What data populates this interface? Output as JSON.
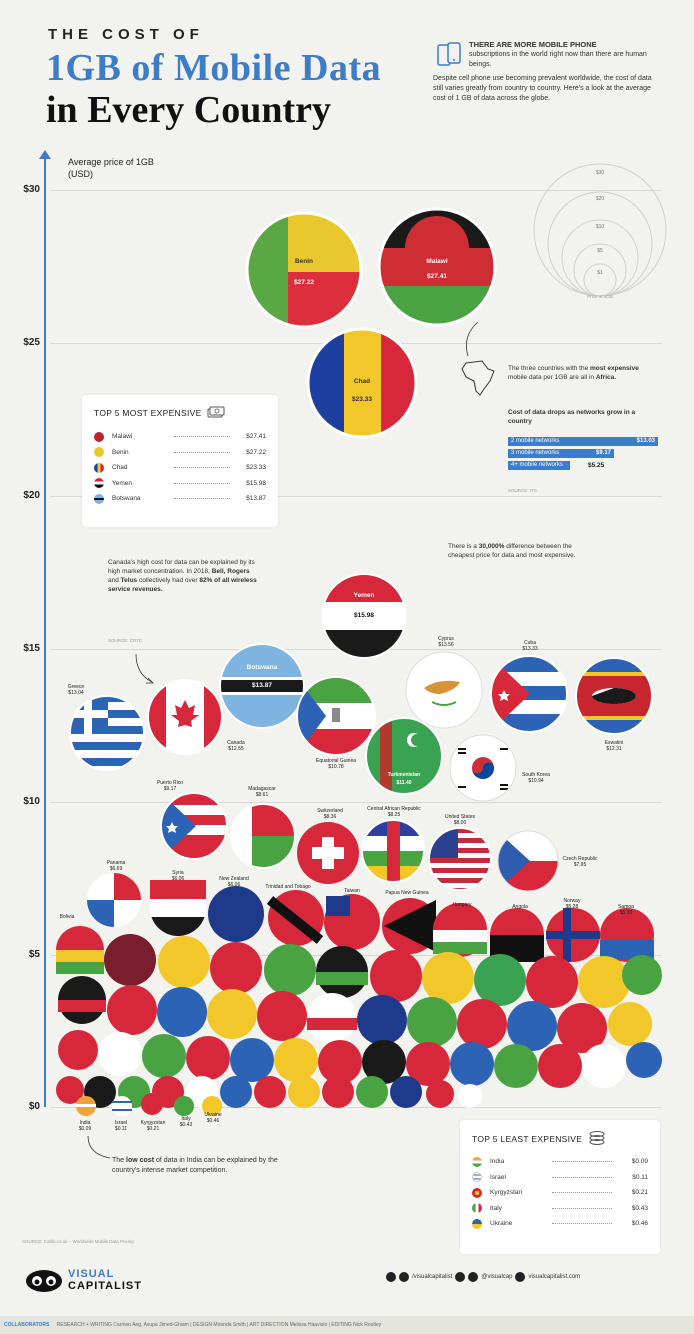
{
  "header": {
    "title_small": "THE COST OF",
    "title_line1": "1GB of Mobile Data",
    "title_line2": "in Every Country",
    "intro_headline": "THERE ARE MORE MOBILE PHONE",
    "intro_p1": "subscriptions in the world right now than there are human beings.",
    "intro_p2": "Despite cell phone use becoming prevalent worldwide, the cost of data still varies greatly from country to country. Here's a look at the average cost of 1 GB of data across the globe."
  },
  "axis": {
    "label": "Average price of 1GB (USD)",
    "ticks": [
      "$30",
      "$25",
      "$20",
      "$15",
      "$10",
      "$5",
      "$0"
    ]
  },
  "chart_data": {
    "type": "scatter",
    "ylabel": "Average price of 1GB (USD)",
    "ylim": [
      0,
      30
    ],
    "points": [
      {
        "name": "Malawi",
        "value": 27.41
      },
      {
        "name": "Benin",
        "value": 27.22
      },
      {
        "name": "Chad",
        "value": 23.33
      },
      {
        "name": "Yemen",
        "value": 15.98
      },
      {
        "name": "Botswana",
        "value": 13.87
      },
      {
        "name": "Cyprus",
        "value": 13.56
      },
      {
        "name": "Cuba",
        "value": 13.33
      },
      {
        "name": "Greece",
        "value": 13.04
      },
      {
        "name": "Canada",
        "value": 12.55
      },
      {
        "name": "Eswatini",
        "value": 12.31
      },
      {
        "name": "Equatorial Guinea",
        "value": 10.78
      },
      {
        "name": "Turkmenistan",
        "value": 11.4
      },
      {
        "name": "South Korea",
        "value": 10.94
      },
      {
        "name": "Puerto Rico",
        "value": 9.17
      },
      {
        "name": "Madagascar",
        "value": 8.61
      },
      {
        "name": "Switzerland",
        "value": 8.36
      },
      {
        "name": "Central African Republic",
        "value": 8.25
      },
      {
        "name": "United States",
        "value": 8.0
      },
      {
        "name": "Czech Republic",
        "value": 7.95
      }
    ]
  },
  "bubbles": {
    "benin": {
      "name": "Benin",
      "price": "$27.22"
    },
    "malawi": {
      "name": "Malawi",
      "price": "$27.41"
    },
    "chad": {
      "name": "Chad",
      "price": "$23.33"
    },
    "yemen": {
      "name": "Yemen",
      "price": "$15.98"
    },
    "botswana": {
      "name": "Botswana",
      "price": "$13.87"
    },
    "turkmenistan": {
      "name": "Turkmenistan",
      "price": "$11.40"
    }
  },
  "small_labels": [
    {
      "name": "Greece",
      "price": "$13.04"
    },
    {
      "name": "Canada",
      "price": "$12.55"
    },
    {
      "name": "Equatorial Guinea",
      "price": "$10.78"
    },
    {
      "name": "Cyprus",
      "price": "$13.56"
    },
    {
      "name": "Cuba",
      "price": "$13.33"
    },
    {
      "name": "Eswatini",
      "price": "$12.31"
    },
    {
      "name": "South Korea",
      "price": "$10.94"
    },
    {
      "name": "Puerto Rico",
      "price": "$9.17"
    },
    {
      "name": "Madagascar",
      "price": "$8.61"
    },
    {
      "name": "Switzerland",
      "price": "$8.36"
    },
    {
      "name": "Central African Republic",
      "price": "$8.25"
    },
    {
      "name": "United States",
      "price": "$8.00"
    },
    {
      "name": "Czech Republic",
      "price": "$7.95"
    },
    {
      "name": "Panama",
      "price": "$6.69"
    },
    {
      "name": "Syria",
      "price": "$6.06"
    },
    {
      "name": "New Zealand",
      "price": "$6.06"
    },
    {
      "name": "Trinidad and Tobago",
      "price": ""
    },
    {
      "name": "Taiwan",
      "price": ""
    },
    {
      "name": "Papua New Guinea",
      "price": ""
    },
    {
      "name": "Hungary",
      "price": ""
    },
    {
      "name": "Angola",
      "price": ""
    },
    {
      "name": "Norway",
      "price": "$5.28"
    },
    {
      "name": "Bolivia",
      "price": ""
    },
    {
      "name": "Samoa",
      "price": "$5.10"
    },
    {
      "name": "India",
      "price": "$0.09"
    },
    {
      "name": "Israel",
      "price": "$0.11"
    },
    {
      "name": "Kyrgyzstan",
      "price": "$0.21"
    },
    {
      "name": "Italy",
      "price": "$0.43"
    },
    {
      "name": "Ukraine",
      "price": "$0.46"
    }
  ],
  "top5_expensive": {
    "title": "TOP 5 MOST EXPENSIVE",
    "rows": [
      {
        "name": "Malawi",
        "value": "$27.41"
      },
      {
        "name": "Benin",
        "value": "$27.22"
      },
      {
        "name": "Chad",
        "value": "$23.33"
      },
      {
        "name": "Yemen",
        "value": "$15.98"
      },
      {
        "name": "Botswana",
        "value": "$13.87"
      }
    ]
  },
  "top5_cheapest": {
    "title": "TOP 5 LEAST EXPENSIVE",
    "rows": [
      {
        "name": "India",
        "value": "$0.09"
      },
      {
        "name": "Israel",
        "value": "$0.11"
      },
      {
        "name": "Kyrgyzstan",
        "value": "$0.21"
      },
      {
        "name": "Italy",
        "value": "$0.43"
      },
      {
        "name": "Ukraine",
        "value": "$0.46"
      }
    ]
  },
  "africa_note": {
    "line1": "The three countries with the",
    "bold1": "most expensive",
    "line2": "mobile data per 1GB are all in",
    "bold2": "Africa.",
    "sub_title": "Cost of data drops as networks grow in a country",
    "bars": [
      {
        "label": "2 mobile networks",
        "value": "$13.03"
      },
      {
        "label": "3 mobile networks",
        "value": "$9.17"
      },
      {
        "label": "4+ mobile networks",
        "value": "$5.25"
      }
    ],
    "source": "SOURCE: ITC"
  },
  "difference_note": {
    "pre": "There is a",
    "bold": "30,000%",
    "post": "difference between the cheapest price for data and most expensive."
  },
  "canada_note": {
    "text1": "Canada's high cost for data can be explained by its high market concentration. In 2018,",
    "bold1": "Bell, Rogers",
    "text2": "and",
    "bold2": "Telus",
    "text3": "collectively had over",
    "bold3": "82% of all wireless service revenues.",
    "source": "SOURCE: CRTC"
  },
  "india_note": {
    "pre": "The",
    "bold": "low cost",
    "post": "of data in India can be explained by the country's intense market competition."
  },
  "legend_circles": {
    "labels": [
      "$30",
      "$20",
      "$10",
      "$5",
      "$1"
    ],
    "caption": "Price of 1GB"
  },
  "footer": {
    "logo_line1": "VISUAL",
    "logo_line2": "CAPITALIST",
    "social1": "/visualcapitalist",
    "social2": "@visualcap",
    "social3": "visualcapitalist.com",
    "collab_label": "COLLABORATORS",
    "collab_text": "RESEARCH + WRITING Carmen Ang, Avupa Jimed-Ghiam  |  DESIGN Miranda Smith  |  ART DIRECTION Melissa Haavisto  |  EDITING Nick Routley",
    "source": "SOURCE: Cable.co.uk – Worldwide Mobile Data Pricing"
  },
  "colors": {
    "accent": "#3d7cc9",
    "background": "#f2f2ee"
  }
}
